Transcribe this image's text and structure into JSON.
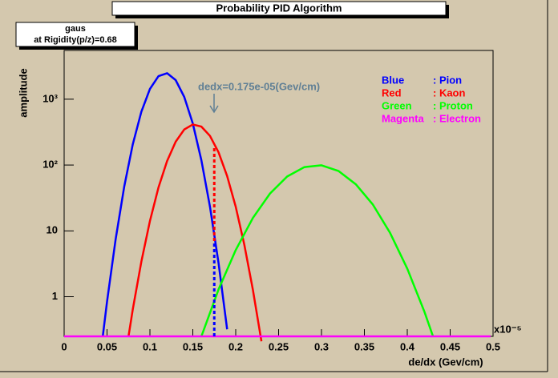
{
  "chart_data": {
    "type": "line",
    "title": "Probability PID Algorithm",
    "stats_lines": [
      "gaus",
      "at Rigidity(p/z)=0.68"
    ],
    "x_label": "de/dx (Gev/cm)",
    "y_label": "amplitude",
    "x_exponent_label": "x10⁻⁵",
    "annotation": "dedx=0.175e-05(Gev/cm)",
    "log_y": true,
    "xlim": [
      0,
      0.5
    ],
    "ylim": [
      0.25,
      5500
    ],
    "xticks": [
      0,
      0.05,
      0.1,
      0.15,
      0.2,
      0.25,
      0.3,
      0.35,
      0.4,
      0.45,
      0.5
    ],
    "yticks": [
      1,
      10,
      {
        "value": 100,
        "label": "10²"
      },
      {
        "value": 1000,
        "label": "10³"
      }
    ],
    "series": [
      {
        "name": ": Pion",
        "color_label": "Blue",
        "color": "#0000ff",
        "x": [
          0.045,
          0.05,
          0.06,
          0.07,
          0.08,
          0.09,
          0.1,
          0.11,
          0.12,
          0.13,
          0.14,
          0.15,
          0.16,
          0.17,
          0.18,
          0.19
        ],
        "values": [
          0.25,
          0.84,
          7.4,
          46.6,
          206,
          644,
          1429,
          2239,
          2483,
          1950,
          1083,
          426,
          118,
          23.3,
          3.24,
          0.32
        ]
      },
      {
        "name": ": Kaon",
        "color_label": "Red",
        "color": "#ff0000",
        "x": [
          0.075,
          0.08,
          0.09,
          0.1,
          0.11,
          0.12,
          0.13,
          0.14,
          0.15,
          0.16,
          0.17,
          0.18,
          0.19,
          0.2,
          0.21,
          0.22,
          0.23
        ],
        "values": [
          0.25,
          0.64,
          3.4,
          14.1,
          45.7,
          115,
          226,
          347,
          413,
          383,
          277,
          156,
          68,
          23.3,
          6.2,
          1.28,
          0.21
        ]
      },
      {
        "name": ": Proton",
        "color_label": "Green",
        "color": "#00ff00",
        "x": [
          0.16,
          0.18,
          0.2,
          0.22,
          0.24,
          0.26,
          0.28,
          0.3,
          0.32,
          0.34,
          0.36,
          0.38,
          0.4,
          0.42,
          0.43
        ],
        "values": [
          0.25,
          1.29,
          5.1,
          15.7,
          37,
          67,
          93,
          99,
          81,
          51,
          25,
          9.3,
          2.67,
          0.59,
          0.25
        ]
      },
      {
        "name": ": Electron",
        "color_label": "Magenta",
        "color": "#ff00ff",
        "x": [
          0,
          0.497
        ],
        "values": [
          0.25,
          0.25
        ]
      }
    ],
    "dedx_x": 0.175,
    "dedx_lines": [
      {
        "color": "#0000ff",
        "value": 7
      },
      {
        "color": "#ff0000",
        "value": 190
      }
    ]
  }
}
